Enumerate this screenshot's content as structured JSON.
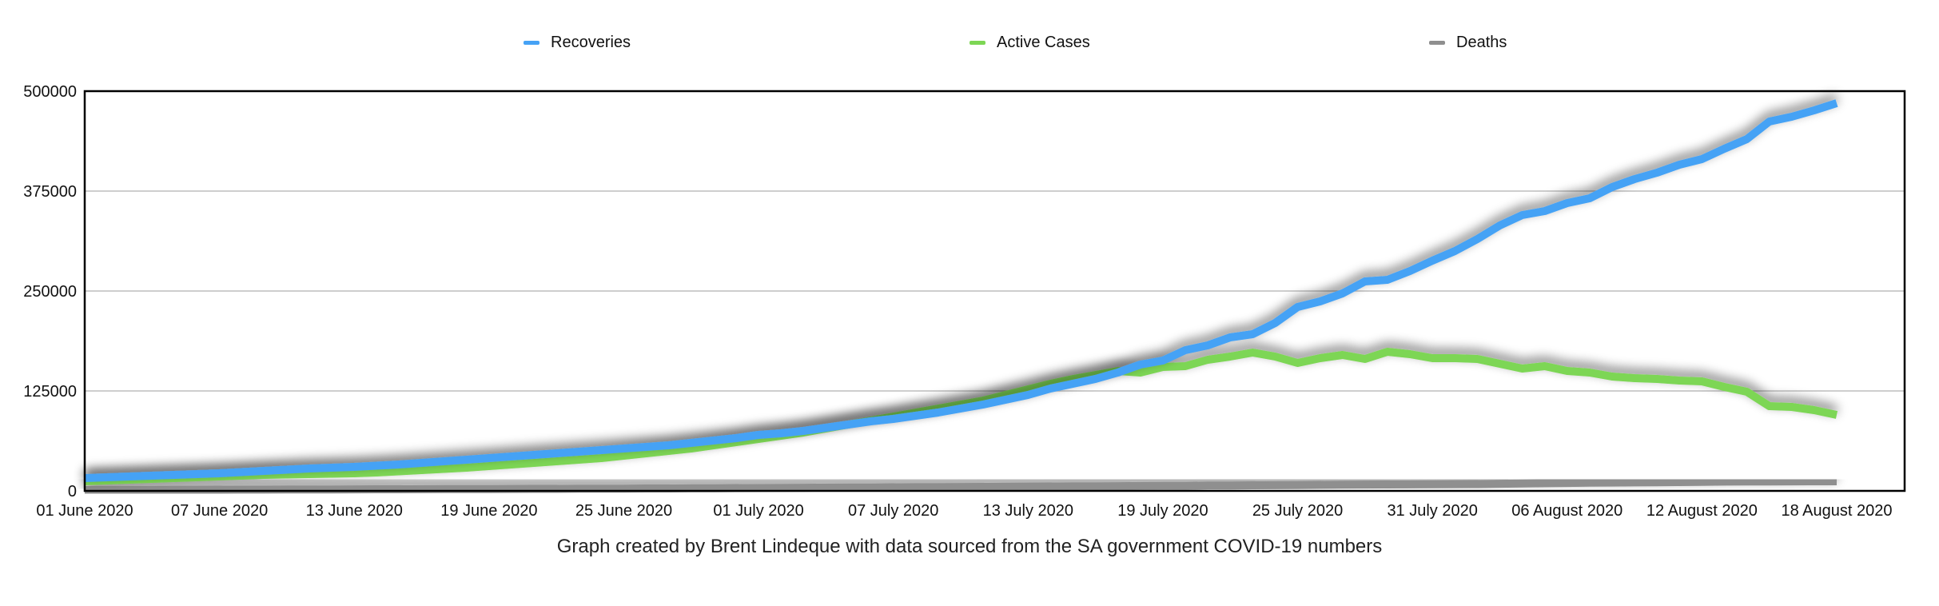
{
  "chart_data": {
    "type": "line",
    "title": "",
    "caption": "Graph created by Brent Lindeque with data sourced from the SA government COVID-19 numbers",
    "xlabel": "",
    "ylabel": "",
    "ylim": [
      0,
      500000
    ],
    "yticks": [
      "0",
      "125000",
      "250000",
      "375000",
      "500000"
    ],
    "ytick_values": [
      0,
      125000,
      250000,
      375000,
      500000
    ],
    "xticks": [
      "01 June 2020",
      "07 June 2020",
      "13 June 2020",
      "19 June 2020",
      "25 June 2020",
      "01 July 2020",
      "07 July 2020",
      "13 July 2020",
      "19 July 2020",
      "25 July 2020",
      "31 July 2020",
      "06 August 2020",
      "12 August 2020",
      "18 August 2020"
    ],
    "x_start": "01 June 2020",
    "x_end": "18 August 2020",
    "x_step_days": 1,
    "xtick_every_days": 6,
    "grid": true,
    "legend_position": "top",
    "series": [
      {
        "name": "Recoveries",
        "color": "#45a2f5",
        "values": [
          16000,
          17000,
          18000,
          19000,
          20000,
          21000,
          22000,
          23500,
          25000,
          26500,
          28000,
          29000,
          30000,
          31500,
          33000,
          35000,
          37000,
          39000,
          41000,
          43000,
          45000,
          47000,
          49000,
          51000,
          53000,
          55000,
          57000,
          60000,
          63000,
          66000,
          70000,
          72000,
          75000,
          79000,
          83000,
          87000,
          90000,
          94000,
          98000,
          103000,
          108000,
          114000,
          120000,
          128000,
          134000,
          140000,
          148000,
          158000,
          163000,
          176000,
          182000,
          192000,
          196000,
          210000,
          230000,
          237000,
          247000,
          262000,
          264000,
          275000,
          288000,
          300000,
          315000,
          332000,
          345000,
          350000,
          360000,
          366000,
          380000,
          390000,
          398000,
          408000,
          415000,
          428000,
          440000,
          462000,
          468000,
          476000,
          485000
        ]
      },
      {
        "name": "Active Cases",
        "color": "#7dd654",
        "values": [
          12000,
          13000,
          14000,
          15000,
          16000,
          17000,
          18000,
          19000,
          20000,
          20500,
          21000,
          21500,
          22000,
          23000,
          24500,
          26000,
          27500,
          29000,
          31000,
          33000,
          35000,
          37000,
          39000,
          41000,
          44000,
          47000,
          50000,
          53000,
          57000,
          61000,
          65000,
          69000,
          73000,
          78000,
          83000,
          88000,
          93000,
          98000,
          103000,
          108000,
          113000,
          120000,
          127000,
          134000,
          140000,
          145000,
          150000,
          148000,
          155000,
          156000,
          164000,
          168000,
          173000,
          168000,
          160000,
          166000,
          170000,
          165000,
          174000,
          171000,
          166000,
          166000,
          165000,
          159000,
          153000,
          156000,
          150000,
          148000,
          143000,
          141000,
          140000,
          138000,
          137000,
          130000,
          124000,
          106000,
          105000,
          101000,
          95000
        ]
      },
      {
        "name": "Deaths",
        "color": "#8f8f8f",
        "values": [
          1080,
          1162,
          1210,
          1284,
          1354,
          1423,
          1480,
          1568,
          1625,
          1674,
          1737,
          1831,
          1877,
          1974,
          2029,
          2102,
          2205,
          2292,
          2340,
          2413,
          2456,
          2529,
          2657,
          2749,
          2844,
          2952,
          3026,
          3199,
          3310,
          3497,
          3602,
          3720,
          3860,
          4079,
          4172,
          4346,
          4453,
          4669,
          4804,
          4948,
          5033,
          5206,
          5368,
          5511,
          5655,
          5768,
          5940,
          6093,
          6209,
          6343,
          6655,
          6769,
          6952,
          7067,
          7257,
          7497,
          7812,
          7900,
          8005,
          8080,
          8153,
          8366,
          8539,
          8884,
          9298,
          9604,
          9909,
          10210,
          10408,
          10621,
          10751,
          11010,
          11270,
          11556,
          11677,
          11839,
          11921,
          11950,
          11982
        ]
      }
    ]
  }
}
